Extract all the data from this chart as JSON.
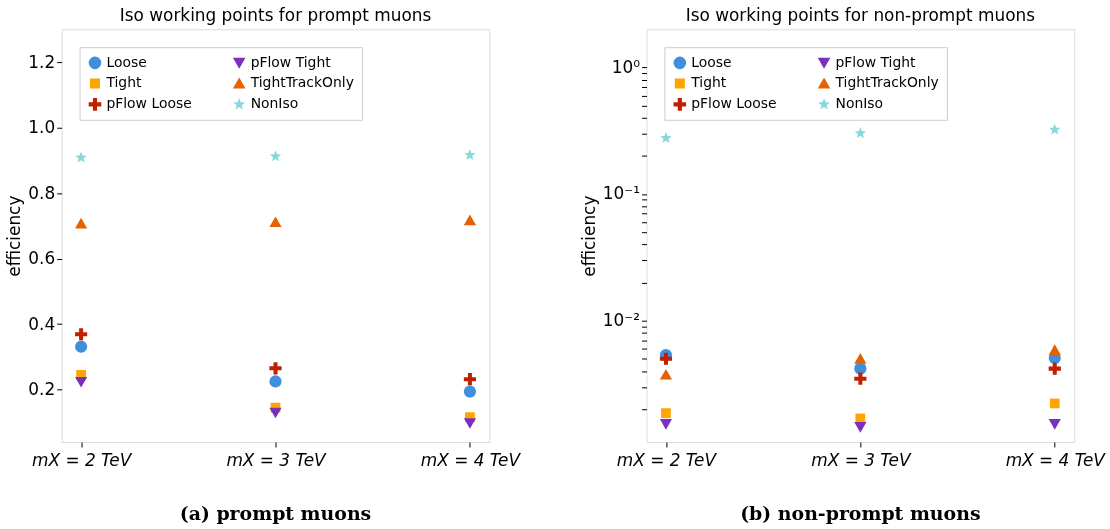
{
  "chart_data": [
    {
      "type": "scatter",
      "title": "Iso working points for prompt muons",
      "ylabel": "efficiency",
      "annotations": [
        "(a) prompt muons"
      ],
      "categories": [
        "mX = 2 TeV",
        "mX = 3 TeV",
        "mX = 4 TeV"
      ],
      "series": [
        {
          "name": "Loose",
          "color": "#3f8fdc",
          "marker": "circle",
          "values": [
            0.331,
            0.225,
            0.194
          ]
        },
        {
          "name": "Tight",
          "color": "#ffa500",
          "marker": "square",
          "values": [
            0.245,
            0.145,
            0.116
          ]
        },
        {
          "name": "pFlow Loose",
          "color": "#c02000",
          "marker": "cross",
          "values": [
            0.369,
            0.265,
            0.232
          ]
        },
        {
          "name": "pFlow Tight",
          "color": "#7b2fbe",
          "marker": "triangle-down",
          "values": [
            0.224,
            0.13,
            0.098
          ]
        },
        {
          "name": "TightTrackOnly",
          "color": "#e66100",
          "marker": "triangle",
          "values": [
            0.707,
            0.711,
            0.717
          ]
        },
        {
          "name": "NonIso",
          "color": "#88d8db",
          "marker": "star",
          "values": [
            0.908,
            0.912,
            0.916
          ]
        }
      ],
      "ylim": [
        0.04,
        1.3
      ],
      "yticks": [
        {
          "value": 0.2,
          "label": "0.2"
        },
        {
          "value": 0.4,
          "label": "0.4"
        },
        {
          "value": 0.6,
          "label": "0.6"
        },
        {
          "value": 0.8,
          "label": "0.8"
        },
        {
          "value": 1.0,
          "label": "1.0"
        },
        {
          "value": 1.2,
          "label": "1.2"
        }
      ],
      "grid": false,
      "legend": "top left"
    },
    {
      "type": "scatter",
      "title": "Iso working points for non-prompt muons",
      "ylabel": "efficiency",
      "annotations": [
        "(b) non-prompt muons"
      ],
      "categories": [
        "mX = 2 TeV",
        "mX = 3 TeV",
        "mX = 4 TeV"
      ],
      "series": [
        {
          "name": "Loose",
          "color": "#3f8fdc",
          "marker": "circle",
          "values": [
            0.00534,
            0.00418,
            0.00507
          ]
        },
        {
          "name": "Tight",
          "color": "#ffa500",
          "marker": "square",
          "values": [
            0.00186,
            0.00169,
            0.00222
          ]
        },
        {
          "name": "pFlow Loose",
          "color": "#c02000",
          "marker": "cross",
          "values": [
            0.005,
            0.00348,
            0.00418
          ]
        },
        {
          "name": "pFlow Tight",
          "color": "#7b2fbe",
          "marker": "triangle-down",
          "values": [
            0.00153,
            0.00145,
            0.00153
          ]
        },
        {
          "name": "TightTrackOnly",
          "color": "#e66100",
          "marker": "triangle",
          "values": [
            0.00374,
            0.005,
            0.00585
          ]
        },
        {
          "name": "NonIso",
          "color": "#88d8db",
          "marker": "star",
          "values": [
            0.276,
            0.302,
            0.322
          ]
        }
      ],
      "log": "y",
      "ylim": [
        0.0011,
        2
      ],
      "yticks": [
        {
          "value": 0.002,
          "label": null
        },
        {
          "value": 0.003,
          "label": null
        },
        {
          "value": 0.004,
          "label": null
        },
        {
          "value": 0.005,
          "label": null
        },
        {
          "value": 0.006,
          "label": null
        },
        {
          "value": 0.007,
          "label": null
        },
        {
          "value": 0.008,
          "label": null
        },
        {
          "value": 0.009,
          "label": null
        },
        {
          "value": 0.01,
          "label": "10⁻²"
        },
        {
          "value": 0.02,
          "label": null
        },
        {
          "value": 0.03,
          "label": null
        },
        {
          "value": 0.04,
          "label": null
        },
        {
          "value": 0.05,
          "label": null
        },
        {
          "value": 0.06,
          "label": null
        },
        {
          "value": 0.07,
          "label": null
        },
        {
          "value": 0.08,
          "label": null
        },
        {
          "value": 0.09,
          "label": null
        },
        {
          "value": 0.1,
          "label": "10⁻¹"
        },
        {
          "value": 0.2,
          "label": null
        },
        {
          "value": 0.3,
          "label": null
        },
        {
          "value": 0.4,
          "label": null
        },
        {
          "value": 0.5,
          "label": null
        },
        {
          "value": 0.6,
          "label": null
        },
        {
          "value": 0.7,
          "label": null
        },
        {
          "value": 0.8,
          "label": null
        },
        {
          "value": 0.9,
          "label": null
        },
        {
          "value": 1,
          "label": "10⁰"
        }
      ],
      "grid": false,
      "legend": "top left"
    }
  ]
}
